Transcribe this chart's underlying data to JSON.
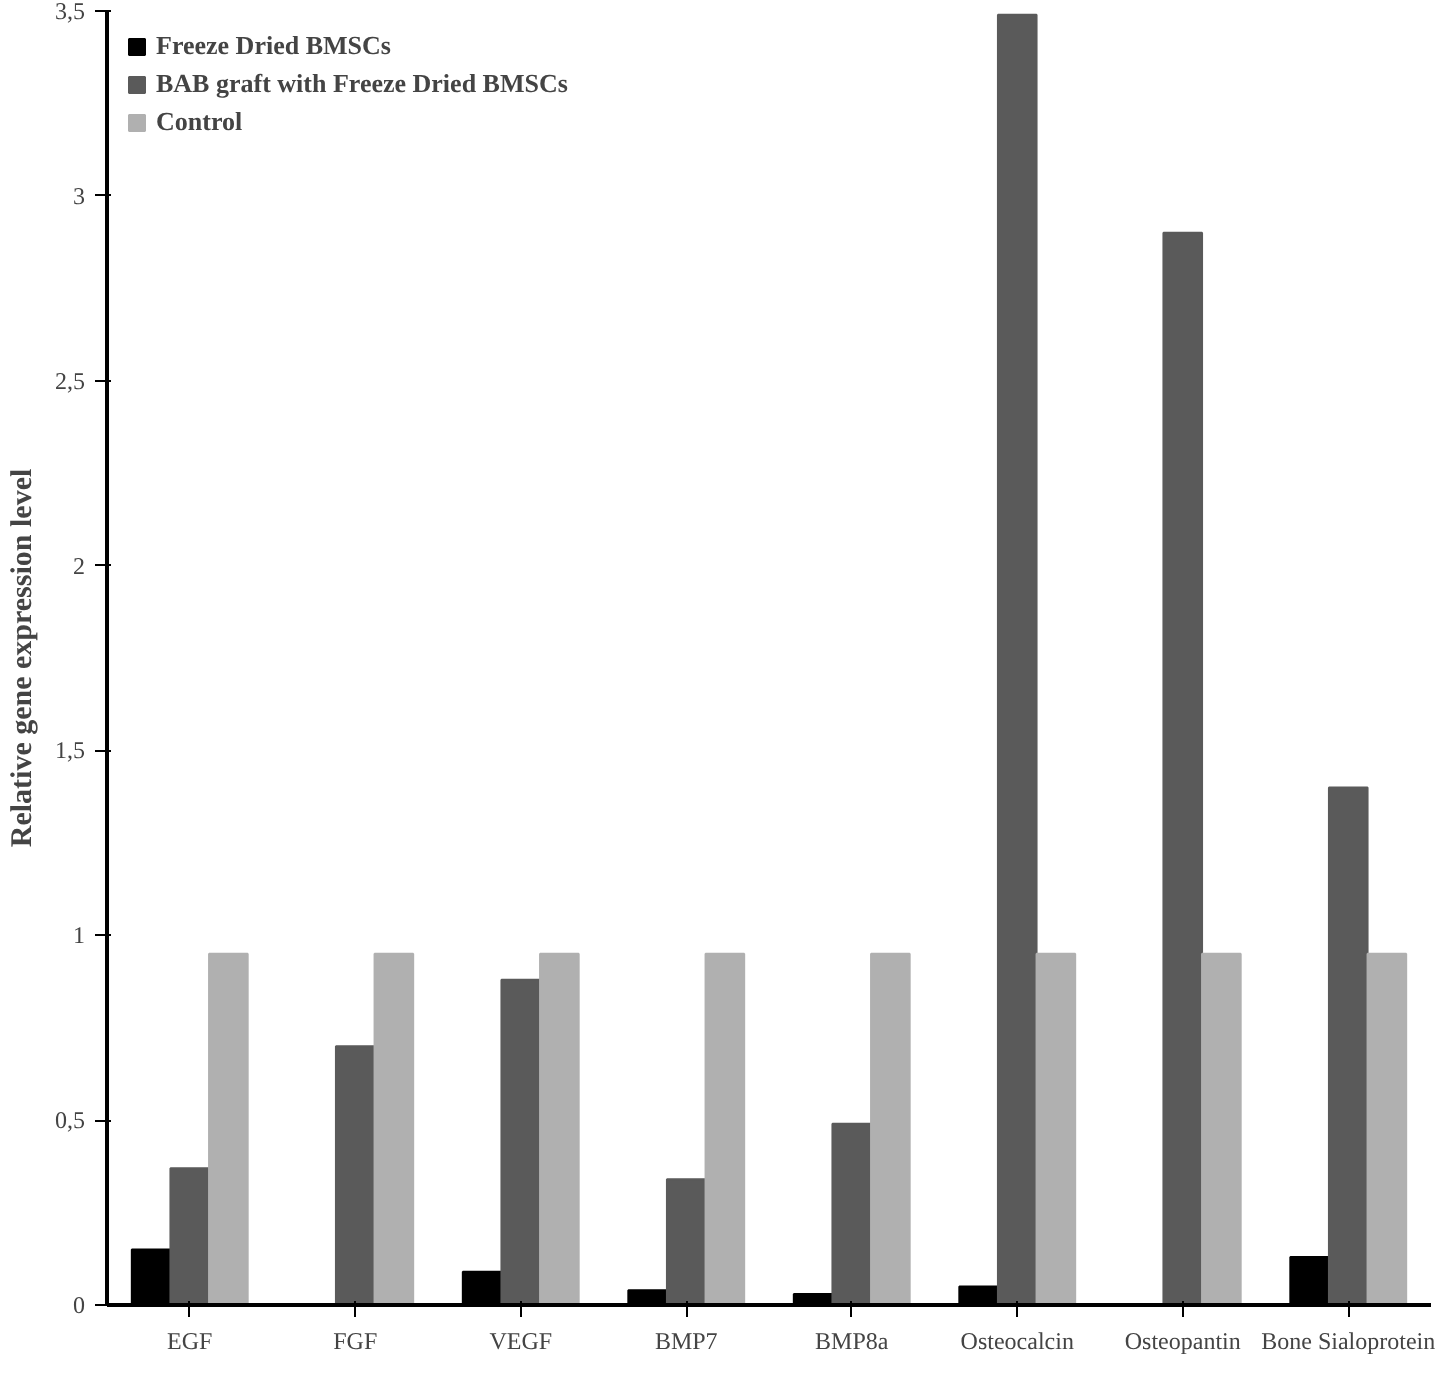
{
  "chart_data": {
    "type": "bar",
    "ylabel": "Relative gene expression level",
    "categories": [
      "EGF",
      "FGF",
      "VEGF",
      "BMP7",
      "BMP8a",
      "Osteocalcin",
      "Osteopantin",
      "Bone Sialoprotein"
    ],
    "series": [
      {
        "name": "Freeze Dried BMSCs",
        "color": "#000000",
        "values": [
          0.15,
          0,
          0.09,
          0.04,
          0.03,
          0.05,
          0,
          0.13
        ]
      },
      {
        "name": "BAB graft with Freeze Dried BMSCs",
        "color": "#5a5a5a",
        "values": [
          0.37,
          0.7,
          0.88,
          0.34,
          0.49,
          3.49,
          2.9,
          1.4
        ]
      },
      {
        "name": "Control",
        "color": "#b0b0b0",
        "values": [
          0.95,
          0.95,
          0.95,
          0.95,
          0.95,
          0.95,
          0.95,
          0.95
        ]
      }
    ],
    "ylim": [
      0,
      3.5
    ],
    "yticks": [
      0,
      {
        "value": 0.5,
        "label": "0,5"
      },
      1,
      {
        "value": 1.5,
        "label": "1,5"
      },
      2,
      {
        "value": 2.5,
        "label": "2,5"
      },
      3,
      {
        "value": 3.5,
        "label": "3,5"
      }
    ],
    "legend": "top",
    "grid": false
  }
}
